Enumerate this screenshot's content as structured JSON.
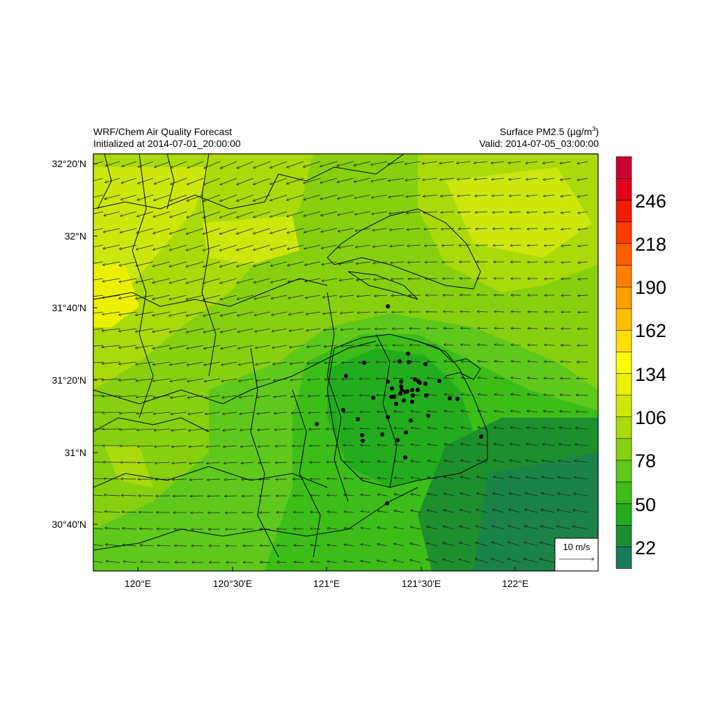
{
  "header": {
    "left_title": "WRF/Chem Air Quality Forecast",
    "left_subtitle": "Initialized at 2014-07-01_20:00:00",
    "right_title_prefix": "Surface PM2.5 (",
    "right_title_units": "µg/m",
    "right_title_exp": "3",
    "right_title_suffix": ")",
    "right_subtitle": "Valid: 2014-07-05_03:00:00"
  },
  "axes": {
    "lat_labels": [
      "32°20'N",
      "32°N",
      "31°40'N",
      "31°20'N",
      "31°N",
      "30°40'N"
    ],
    "lon_labels": [
      "120°E",
      "120°30'E",
      "121°E",
      "121°30'E",
      "122°E"
    ]
  },
  "reference_vector": {
    "label": "10 m/s"
  },
  "colorbar": {
    "labels": [
      "246",
      "218",
      "190",
      "162",
      "134",
      "106",
      "78",
      "50",
      "22"
    ],
    "colors": [
      "#1a7a5c",
      "#1d8f2d",
      "#23ad1e",
      "#3cbd18",
      "#5ec81c",
      "#86d00f",
      "#aada0a",
      "#cde60c",
      "#ecf000",
      "#ffff00",
      "#ffe000",
      "#ffc000",
      "#ffa000",
      "#ff8000",
      "#ff5e00",
      "#ff3c00",
      "#f21a00",
      "#e0001e",
      "#c80032"
    ]
  },
  "map_colors": {
    "frame": "#000000",
    "vector": "#222222",
    "boundary": "#000000"
  },
  "wind_field": {
    "mean_direction": "east-southeast to west-northwest"
  }
}
